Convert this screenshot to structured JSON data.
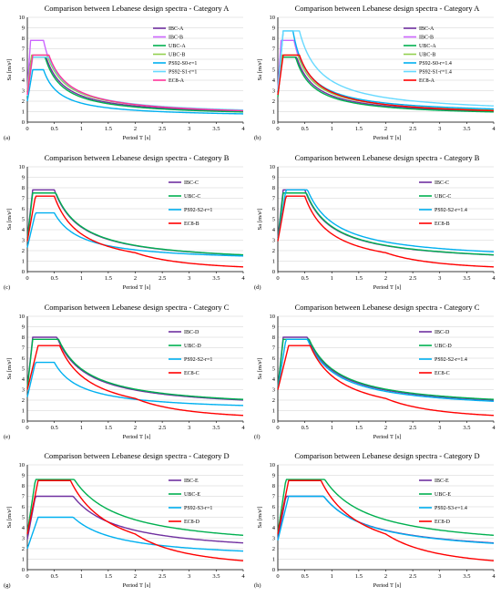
{
  "colors": {
    "IBC": "#7030a0",
    "IBC_light": "#cc66ff",
    "UBC": "#00b050",
    "UBC_light": "#92d050",
    "PS92": "#00b0f0",
    "PS92_light": "#66d9ff",
    "EC8": "#ff0000",
    "EC8_pink": "#ff3399"
  },
  "chart_data": [
    {
      "panel": "(a)",
      "type": "line",
      "title": "Comparison between Lebanese design spectra - Category A",
      "xlabel": "Period T [s]",
      "ylabel": "Sa [m/s²]",
      "xlim": [
        0,
        4
      ],
      "ylim": [
        0,
        10
      ],
      "xticks": [
        "0",
        "0.5",
        "1",
        "1.5",
        "2",
        "2.5",
        "3",
        "3.5",
        "4"
      ],
      "yticks": [
        "0",
        "1",
        "2",
        "3",
        "4",
        "5",
        "6",
        "7",
        "8",
        "9",
        "10"
      ],
      "grid": "horizontal",
      "legend_position": "right",
      "series": [
        {
          "name": "IBC-A",
          "color": "IBC",
          "a0": 2.9,
          "plateau": 6.2,
          "t1": 0.07,
          "tc": 0.35,
          "td": 0,
          "end": 0.55
        },
        {
          "name": "IBC-B",
          "color": "IBC_light",
          "a0": 3.1,
          "plateau": 7.8,
          "t1": 0.06,
          "tc": 0.3,
          "td": 0,
          "end": 0.6
        },
        {
          "name": "UBC-A",
          "color": "UBC",
          "a0": 2.4,
          "plateau": 6.2,
          "t1": 0.08,
          "tc": 0.33,
          "td": 0,
          "end": 0.5
        },
        {
          "name": "UBC-B",
          "color": "UBC_light",
          "a0": 2.9,
          "plateau": 6.4,
          "t1": 0.08,
          "tc": 0.37,
          "td": 0,
          "end": 0.6
        },
        {
          "name": "PS92-S0-r=1",
          "color": "PS92",
          "a0": 2.0,
          "plateau": 5.0,
          "t1": 0.1,
          "tc": 0.3,
          "td": 0,
          "end": 0.45
        },
        {
          "name": "PS92-S1-r=1",
          "color": "PS92_light",
          "a0": 2.5,
          "plateau": 6.2,
          "t1": 0.1,
          "tc": 0.4,
          "td": 0,
          "end": 0.6
        },
        {
          "name": "EC8-A",
          "color": "EC8_pink",
          "a0": 2.6,
          "plateau": 6.4,
          "t1": 0.1,
          "tc": 0.4,
          "td": 0,
          "end": 0.5
        }
      ]
    },
    {
      "panel": "(b)",
      "type": "line",
      "title": "Comparison between Lebanese design spectra - Category A",
      "xlabel": "Period T [s]",
      "ylabel": "Sa [m/s²]",
      "xlim": [
        0,
        4
      ],
      "ylim": [
        0,
        10
      ],
      "xticks": [
        "0",
        "0.5",
        "1",
        "1.5",
        "2",
        "2.5",
        "3",
        "3.5",
        "4"
      ],
      "yticks": [
        "0",
        "1",
        "2",
        "3",
        "4",
        "5",
        "6",
        "7",
        "8",
        "9",
        "10"
      ],
      "grid": "horizontal",
      "legend_position": "right",
      "series": [
        {
          "name": "IBC-A",
          "color": "IBC",
          "a0": 2.9,
          "plateau": 6.2,
          "t1": 0.07,
          "tc": 0.35,
          "td": 0,
          "end": 0.55
        },
        {
          "name": "IBC-B",
          "color": "IBC_light",
          "a0": 3.1,
          "plateau": 7.8,
          "t1": 0.06,
          "tc": 0.3,
          "td": 0,
          "end": 0.6
        },
        {
          "name": "UBC-A",
          "color": "UBC",
          "a0": 2.4,
          "plateau": 6.2,
          "t1": 0.08,
          "tc": 0.33,
          "td": 0,
          "end": 0.5
        },
        {
          "name": "UBC-B",
          "color": "UBC_light",
          "a0": 2.9,
          "plateau": 6.4,
          "t1": 0.08,
          "tc": 0.37,
          "td": 0,
          "end": 0.6
        },
        {
          "name": "PS92-S0-r=1.4",
          "color": "PS92",
          "a0": 2.8,
          "plateau": 8.7,
          "t1": 0.1,
          "tc": 0.28,
          "td": 0,
          "end": 0.7
        },
        {
          "name": "PS92-S1-r=1.4",
          "color": "PS92_light",
          "a0": 3.0,
          "plateau": 8.7,
          "t1": 0.1,
          "tc": 0.4,
          "td": 0,
          "end": 0.75
        },
        {
          "name": "EC8-A",
          "color": "EC8",
          "a0": 2.6,
          "plateau": 6.4,
          "t1": 0.1,
          "tc": 0.4,
          "td": 0,
          "end": 0.5
        }
      ]
    },
    {
      "panel": "(c)",
      "type": "line",
      "title": "Comparison between Lebanese design spectra - Category B",
      "xlabel": "Period T [s]",
      "ylabel": "Sa [m/s²]",
      "xlim": [
        0,
        4
      ],
      "ylim": [
        0,
        10
      ],
      "xticks": [
        "0",
        "0.5",
        "1",
        "1.5",
        "2",
        "2.5",
        "3",
        "3.5",
        "4"
      ],
      "yticks": [
        "0",
        "1",
        "2",
        "3",
        "4",
        "5",
        "6",
        "7",
        "8",
        "9",
        "10"
      ],
      "grid": "horizontal",
      "legend_position": "right",
      "series": [
        {
          "name": "IBC-C",
          "color": "IBC",
          "a0": 3.2,
          "plateau": 7.8,
          "t1": 0.1,
          "tc": 0.5,
          "td": 0,
          "end": 0.7
        },
        {
          "name": "UBC-C",
          "color": "UBC",
          "a0": 3.0,
          "plateau": 7.5,
          "t1": 0.1,
          "tc": 0.53,
          "td": 0,
          "end": 0.7
        },
        {
          "name": "PS92-S2-r=1",
          "color": "PS92",
          "a0": 2.3,
          "plateau": 5.6,
          "t1": 0.15,
          "tc": 0.5,
          "td": 0,
          "end": 0.9
        },
        {
          "name": "EC8-B",
          "color": "EC8",
          "a0": 2.9,
          "plateau": 7.2,
          "t1": 0.15,
          "tc": 0.5,
          "td": 2.0,
          "end": 0
        }
      ]
    },
    {
      "panel": "(d)",
      "type": "line",
      "title": "Comparison between Lebanese design spectra - Category B",
      "xlabel": "Period T [s]",
      "ylabel": "Sa [m/s²]",
      "xlim": [
        0,
        4
      ],
      "ylim": [
        0,
        10
      ],
      "xticks": [
        "0",
        "0.5",
        "1",
        "1.5",
        "2",
        "2.5",
        "3",
        "3.5",
        "4"
      ],
      "yticks": [
        "0",
        "1",
        "2",
        "3",
        "4",
        "5",
        "6",
        "7",
        "8",
        "9",
        "10"
      ],
      "grid": "horizontal",
      "legend_position": "right",
      "series": [
        {
          "name": "IBC-C",
          "color": "IBC",
          "a0": 3.2,
          "plateau": 7.8,
          "t1": 0.1,
          "tc": 0.5,
          "td": 0,
          "end": 0.7
        },
        {
          "name": "UBC-C",
          "color": "UBC",
          "a0": 3.0,
          "plateau": 7.5,
          "t1": 0.1,
          "tc": 0.53,
          "td": 0,
          "end": 0.7
        },
        {
          "name": "PS92-S2-r=1.4",
          "color": "PS92",
          "a0": 3.0,
          "plateau": 7.8,
          "t1": 0.15,
          "tc": 0.55,
          "td": 0,
          "end": 0.95
        },
        {
          "name": "EC8-B",
          "color": "EC8",
          "a0": 2.9,
          "plateau": 7.2,
          "t1": 0.15,
          "tc": 0.5,
          "td": 2.0,
          "end": 0
        }
      ]
    },
    {
      "panel": "(e)",
      "type": "line",
      "title": "Comparison between Lebanese design spectra - Category C",
      "xlabel": "Period T [s]",
      "ylabel": "Sa [m/s²]",
      "xlim": [
        0,
        4
      ],
      "ylim": [
        0,
        10
      ],
      "xticks": [
        "0",
        "0.5",
        "1",
        "1.5",
        "2",
        "2.5",
        "3",
        "3.5",
        "4"
      ],
      "yticks": [
        "0",
        "1",
        "2",
        "3",
        "4",
        "5",
        "6",
        "7",
        "8",
        "9",
        "10"
      ],
      "grid": "horizontal",
      "legend_position": "right",
      "series": [
        {
          "name": "IBC-D",
          "color": "IBC",
          "a0": 3.2,
          "plateau": 8.0,
          "t1": 0.1,
          "tc": 0.55,
          "td": 0,
          "end": 1.05
        },
        {
          "name": "UBC-D",
          "color": "UBC",
          "a0": 3.1,
          "plateau": 7.8,
          "t1": 0.1,
          "tc": 0.58,
          "td": 0,
          "end": 1.1
        },
        {
          "name": "PS92-S2-r=1",
          "color": "PS92",
          "a0": 2.3,
          "plateau": 5.6,
          "t1": 0.15,
          "tc": 0.5,
          "td": 0,
          "end": 0.9
        },
        {
          "name": "EC8-C",
          "color": "EC8",
          "a0": 3.0,
          "plateau": 7.2,
          "t1": 0.2,
          "tc": 0.6,
          "td": 2.0,
          "end": 0
        }
      ]
    },
    {
      "panel": "(f)",
      "type": "line",
      "title": "Comparison between Lebanese design spectra - Category C",
      "xlabel": "Period T [s]",
      "ylabel": "Sa [m/s²]",
      "xlim": [
        0,
        4
      ],
      "ylim": [
        0,
        10
      ],
      "xticks": [
        "0",
        "0.5",
        "1",
        "1.5",
        "2",
        "2.5",
        "3",
        "3.5",
        "4"
      ],
      "yticks": [
        "0",
        "1",
        "2",
        "3",
        "4",
        "5",
        "6",
        "7",
        "8",
        "9",
        "10"
      ],
      "grid": "horizontal",
      "legend_position": "right",
      "series": [
        {
          "name": "IBC-D",
          "color": "IBC",
          "a0": 3.2,
          "plateau": 8.0,
          "t1": 0.1,
          "tc": 0.55,
          "td": 0,
          "end": 1.05
        },
        {
          "name": "UBC-D",
          "color": "UBC",
          "a0": 3.1,
          "plateau": 7.8,
          "t1": 0.1,
          "tc": 0.58,
          "td": 0,
          "end": 1.1
        },
        {
          "name": "PS92-S2-r=1.4",
          "color": "PS92",
          "a0": 3.0,
          "plateau": 7.8,
          "t1": 0.15,
          "tc": 0.55,
          "td": 0,
          "end": 0.95
        },
        {
          "name": "EC8-C",
          "color": "EC8",
          "a0": 3.0,
          "plateau": 7.2,
          "t1": 0.2,
          "tc": 0.6,
          "td": 2.0,
          "end": 0
        }
      ]
    },
    {
      "panel": "(g)",
      "type": "line",
      "title": "Comparison between Lebanese design spectra - Category D",
      "xlabel": "Period T [s]",
      "ylabel": "Sa [m/s²]",
      "xlim": [
        0,
        4
      ],
      "ylim": [
        0,
        10
      ],
      "xticks": [
        "0",
        "0.5",
        "1",
        "1.5",
        "2",
        "2.5",
        "3",
        "3.5",
        "4"
      ],
      "yticks": [
        "0",
        "1",
        "2",
        "3",
        "4",
        "5",
        "6",
        "7",
        "8",
        "9",
        "10"
      ],
      "grid": "horizontal",
      "legend_position": "right",
      "series": [
        {
          "name": "IBC-E",
          "color": "IBC",
          "a0": 2.9,
          "plateau": 7.0,
          "t1": 0.15,
          "tc": 0.85,
          "td": 0,
          "end": 1.35
        },
        {
          "name": "UBC-E",
          "color": "UBC",
          "a0": 3.5,
          "plateau": 8.6,
          "t1": 0.15,
          "tc": 0.87,
          "td": 0,
          "end": 1.8
        },
        {
          "name": "PS92-S3-r=1",
          "color": "PS92",
          "a0": 2.0,
          "plateau": 5.0,
          "t1": 0.2,
          "tc": 0.85,
          "td": 0,
          "end": 0.9
        },
        {
          "name": "EC8-D",
          "color": "EC8",
          "a0": 3.4,
          "plateau": 8.5,
          "t1": 0.2,
          "tc": 0.8,
          "td": 2.0,
          "end": 0
        }
      ]
    },
    {
      "panel": "(h)",
      "type": "line",
      "title": "Comparison between Lebanese design spectra - Category D",
      "xlabel": "Period T [s]",
      "ylabel": "Sa [m/s²]",
      "xlim": [
        0,
        4
      ],
      "ylim": [
        0,
        10
      ],
      "xticks": [
        "0",
        "0.5",
        "1",
        "1.5",
        "2",
        "2.5",
        "3",
        "3.5",
        "4"
      ],
      "yticks": [
        "0",
        "1",
        "2",
        "3",
        "4",
        "5",
        "6",
        "7",
        "8",
        "9",
        "10"
      ],
      "grid": "horizontal",
      "legend_position": "right",
      "series": [
        {
          "name": "IBC-E",
          "color": "IBC",
          "a0": 2.9,
          "plateau": 7.0,
          "t1": 0.15,
          "tc": 0.85,
          "td": 0,
          "end": 1.35
        },
        {
          "name": "UBC-E",
          "color": "UBC",
          "a0": 3.5,
          "plateau": 8.6,
          "t1": 0.15,
          "tc": 0.87,
          "td": 0,
          "end": 1.8
        },
        {
          "name": "PS92-S3-r=1.4",
          "color": "PS92",
          "a0": 2.8,
          "plateau": 7.0,
          "t1": 0.2,
          "tc": 0.85,
          "td": 0,
          "end": 1.3
        },
        {
          "name": "EC8-D",
          "color": "EC8",
          "a0": 3.4,
          "plateau": 8.5,
          "t1": 0.2,
          "tc": 0.8,
          "td": 2.0,
          "end": 0
        }
      ]
    }
  ]
}
